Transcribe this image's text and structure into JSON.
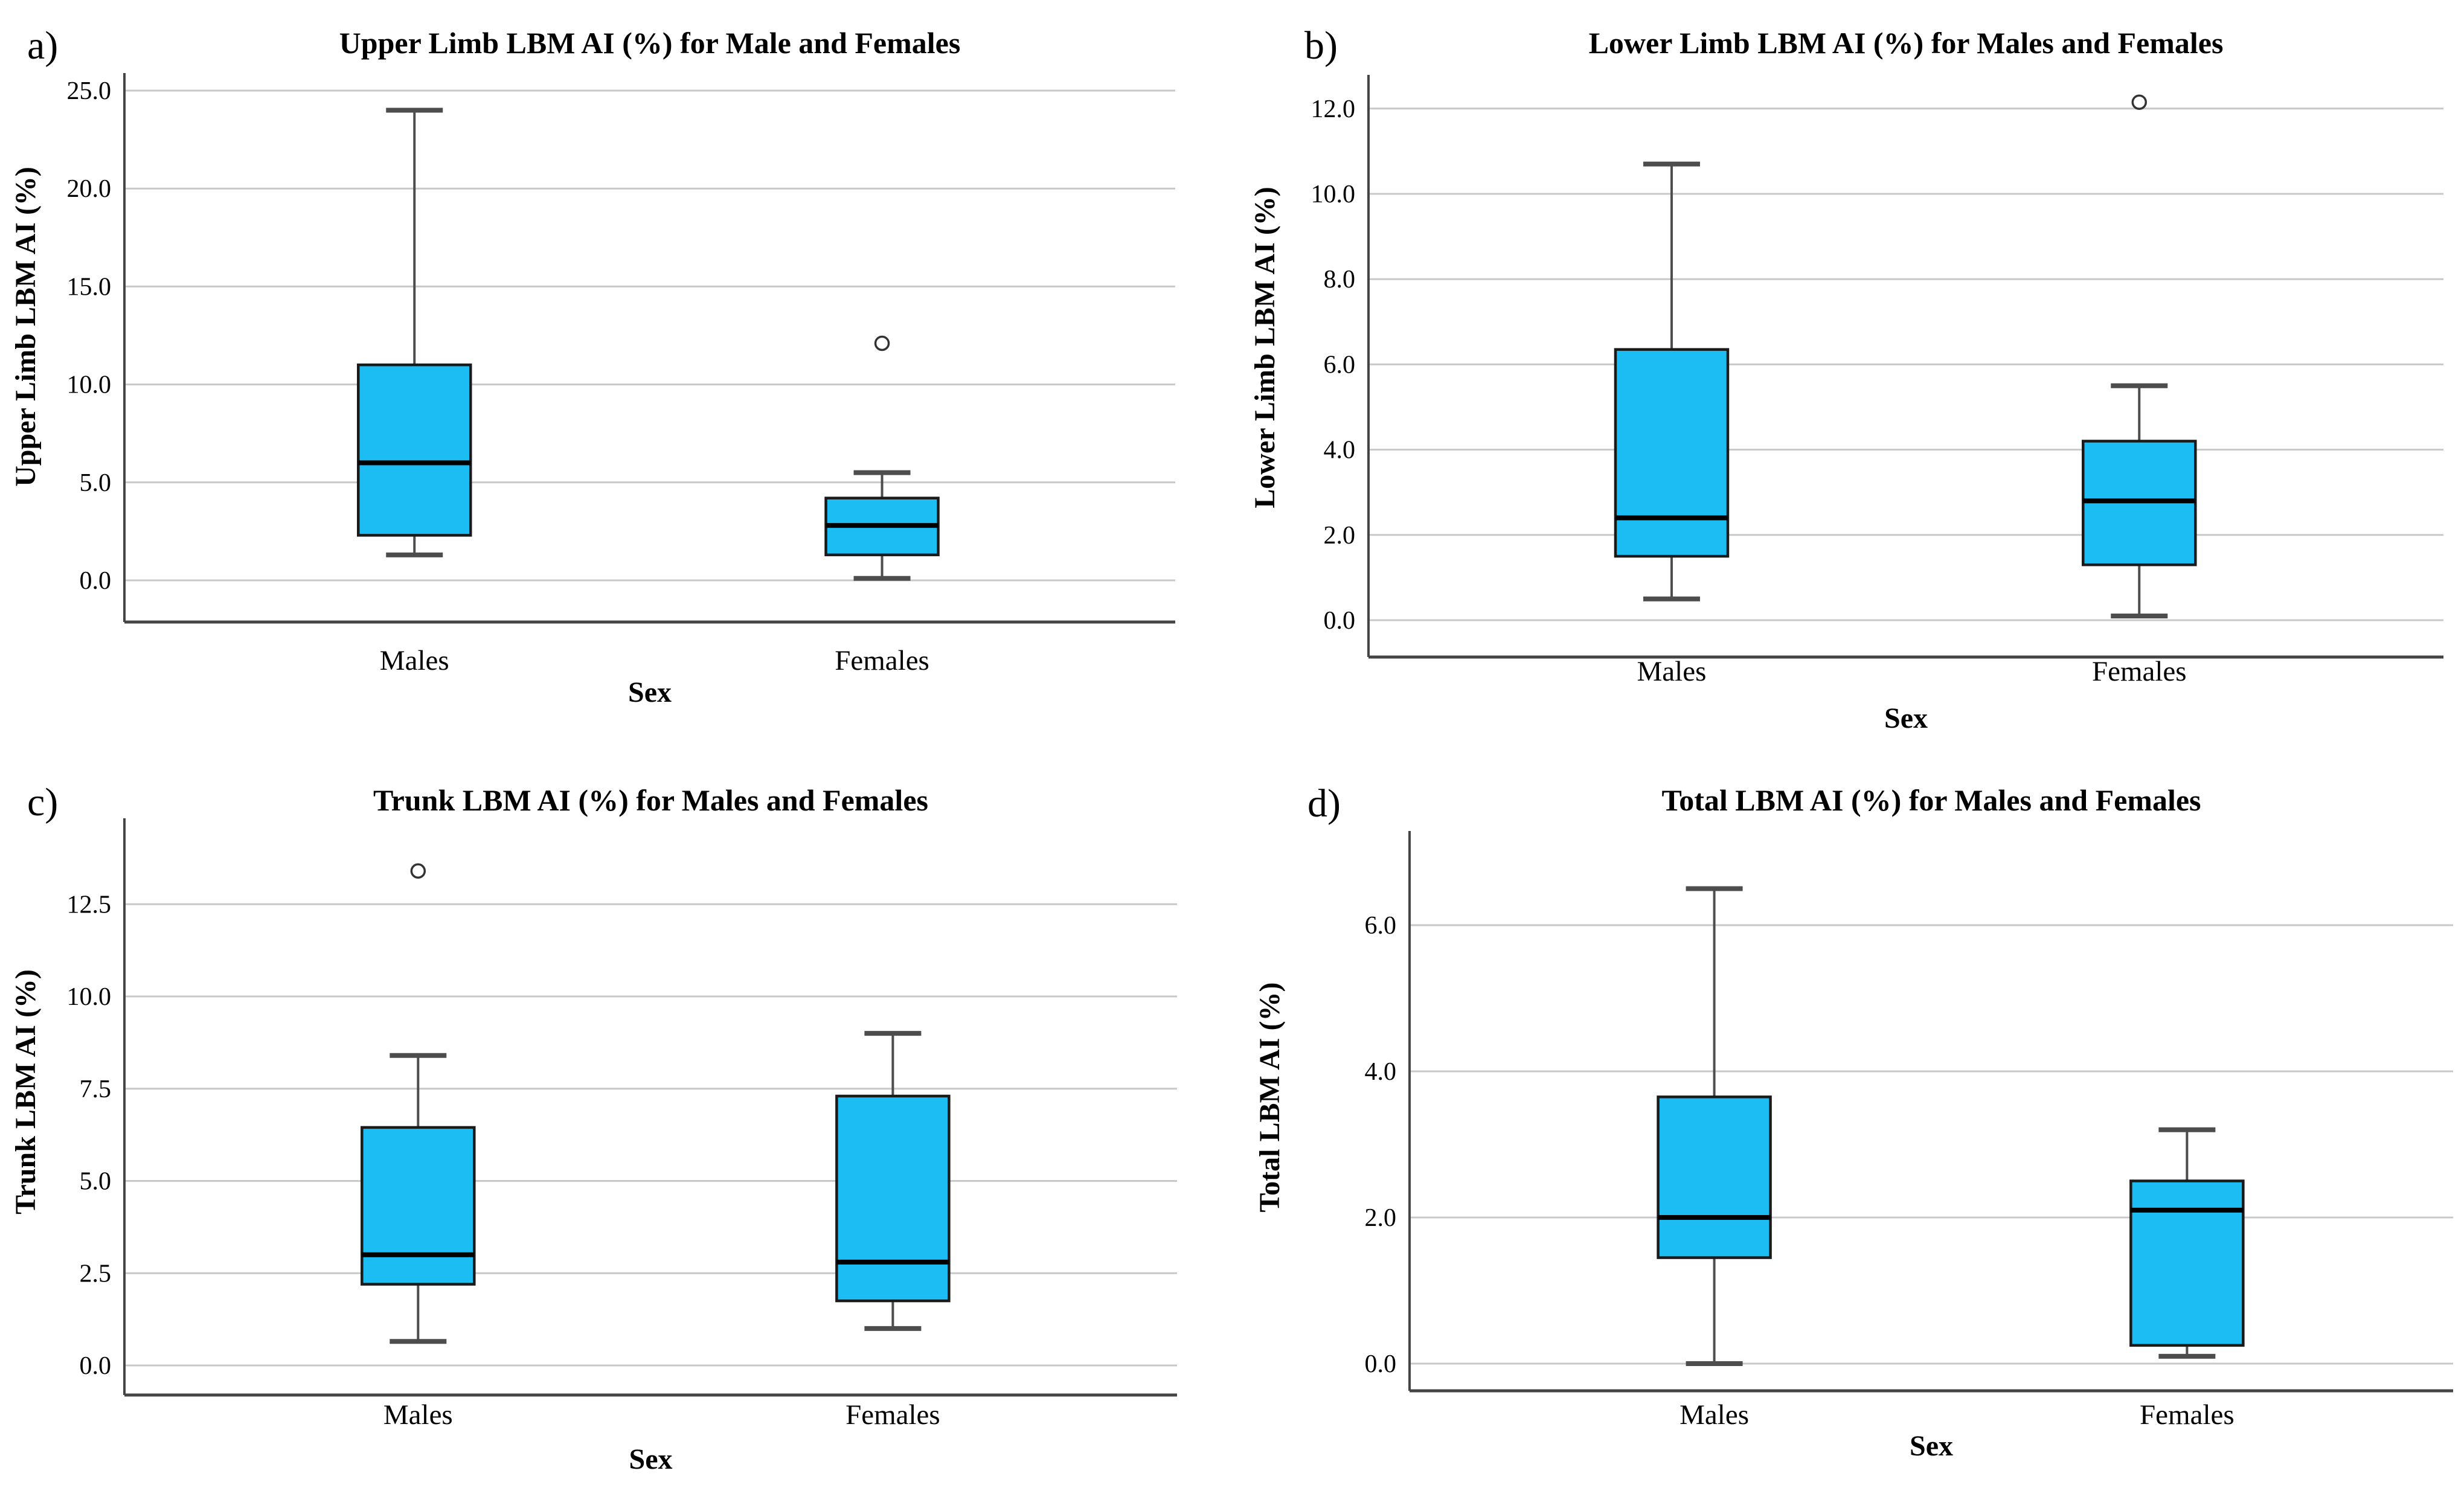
{
  "figure": {
    "description": "Four box plots comparing LBM AI (%) between Males and Females",
    "xlabel": "Sex",
    "categories": [
      "Males",
      "Females"
    ]
  },
  "style": {
    "box_fill": "#1cbdf2",
    "box_border": "#1a1a1a",
    "median_color": "#000000",
    "whisker_color": "#4d4d4d",
    "grid_color": "#c8c8c8",
    "axis_color": "#444444",
    "outlier_color": "#333333",
    "text_color": "#000000",
    "background": "#ffffff"
  },
  "chart_data": [
    {
      "id": "a",
      "panel_label": "a)",
      "type": "boxplot",
      "title": "Upper Limb LBM AI (%) for Male and Females",
      "xlabel": "Sex",
      "ylabel": "Upper Limb LBM AI (%)",
      "categories": [
        "Males",
        "Females"
      ],
      "ylim": [
        0,
        25
      ],
      "yticks": [
        0,
        5,
        10,
        15,
        20,
        25
      ],
      "ytick_labels": [
        "0.0",
        "5.0",
        "10.0",
        "15.0",
        "20.0",
        "25.0"
      ],
      "grid": "horizontal",
      "series": [
        {
          "name": "Males",
          "whisker_low": 1.3,
          "q1": 2.3,
          "median": 6.0,
          "q3": 11.0,
          "whisker_high": 24.0,
          "outliers": []
        },
        {
          "name": "Females",
          "whisker_low": 0.1,
          "q1": 1.3,
          "median": 2.8,
          "q3": 4.2,
          "whisker_high": 5.5,
          "outliers": [
            12.1
          ]
        }
      ]
    },
    {
      "id": "b",
      "panel_label": "b)",
      "type": "boxplot",
      "title": "Lower Limb LBM AI (%) for Males and Females",
      "xlabel": "Sex",
      "ylabel": "Lower Limb LBM AI (%)",
      "categories": [
        "Males",
        "Females"
      ],
      "ylim": [
        0,
        12
      ],
      "yticks": [
        0,
        2,
        4,
        6,
        8,
        10,
        12
      ],
      "ytick_labels": [
        "0.0",
        "2.0",
        "4.0",
        "6.0",
        "8.0",
        "10.0",
        "12.0"
      ],
      "grid": "horizontal",
      "series": [
        {
          "name": "Males",
          "whisker_low": 0.5,
          "q1": 1.5,
          "median": 2.4,
          "q3": 6.35,
          "whisker_high": 10.7,
          "outliers": []
        },
        {
          "name": "Females",
          "whisker_low": 0.1,
          "q1": 1.3,
          "median": 2.8,
          "q3": 4.2,
          "whisker_high": 5.5,
          "outliers": [
            12.15
          ]
        }
      ]
    },
    {
      "id": "c",
      "panel_label": "c)",
      "type": "boxplot",
      "title": "Trunk LBM AI (%) for Males and Females",
      "xlabel": "Sex",
      "ylabel": "Trunk LBM AI (%)",
      "categories": [
        "Males",
        "Females"
      ],
      "ylim": [
        0,
        12.5
      ],
      "yticks": [
        0,
        2.5,
        5,
        7.5,
        10,
        12.5
      ],
      "ytick_labels": [
        "0.0",
        "2.5",
        "5.0",
        "7.5",
        "10.0",
        "12.5"
      ],
      "grid": "horizontal",
      "series": [
        {
          "name": "Males",
          "whisker_low": 0.65,
          "q1": 2.2,
          "median": 3.0,
          "q3": 6.45,
          "whisker_high": 8.4,
          "outliers": [
            13.4
          ]
        },
        {
          "name": "Females",
          "whisker_low": 1.0,
          "q1": 1.75,
          "median": 2.8,
          "q3": 7.3,
          "whisker_high": 9.0,
          "outliers": []
        }
      ]
    },
    {
      "id": "d",
      "panel_label": "d)",
      "type": "boxplot",
      "title": "Total LBM AI (%) for Males and Females",
      "xlabel": "Sex",
      "ylabel": "Total LBM AI (%)",
      "categories": [
        "Males",
        "Females"
      ],
      "ylim": [
        0,
        6
      ],
      "yticks": [
        0,
        2,
        4,
        6
      ],
      "ytick_labels": [
        "0.0",
        "2.0",
        "4.0",
        "6.0"
      ],
      "grid": "horizontal",
      "series": [
        {
          "name": "Males",
          "whisker_low": 0.0,
          "q1": 1.45,
          "median": 2.0,
          "q3": 3.65,
          "whisker_high": 6.5,
          "outliers": []
        },
        {
          "name": "Females",
          "whisker_low": 0.1,
          "q1": 0.25,
          "median": 2.1,
          "q3": 2.5,
          "whisker_high": 3.2,
          "outliers": []
        }
      ]
    }
  ]
}
